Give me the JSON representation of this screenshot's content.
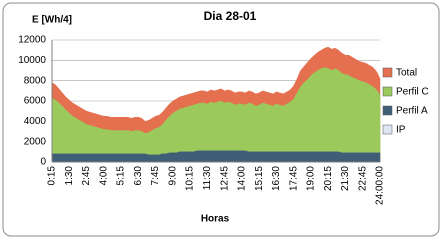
{
  "chart_data": {
    "type": "area",
    "title": "Dia 28-01",
    "y_label": "E [Wh/4]",
    "x_label": "Horas",
    "categories": [
      "0:15",
      null,
      null,
      null,
      null,
      "1:30",
      null,
      null,
      null,
      null,
      "2:45",
      null,
      null,
      null,
      null,
      "4:00",
      null,
      null,
      null,
      null,
      "5:15",
      null,
      null,
      null,
      null,
      "6:30",
      null,
      null,
      null,
      null,
      "7:45",
      null,
      null,
      null,
      null,
      "9:00",
      null,
      null,
      null,
      null,
      "10:15",
      null,
      null,
      null,
      null,
      "11:30",
      null,
      null,
      null,
      null,
      "12:45",
      null,
      null,
      null,
      null,
      "14:00",
      null,
      null,
      null,
      null,
      "15:15",
      null,
      null,
      null,
      null,
      "16:30",
      null,
      null,
      null,
      null,
      "17:45",
      null,
      null,
      null,
      null,
      "19:00",
      null,
      null,
      null,
      null,
      "20:15",
      null,
      null,
      null,
      null,
      "21:30",
      null,
      null,
      null,
      null,
      "22:45",
      null,
      null,
      null,
      null,
      "24:00:00"
    ],
    "series": [
      {
        "name": "Total",
        "color": "#e5704f",
        "values": [
          7800,
          7600,
          7200,
          6800,
          6400,
          6100,
          5800,
          5600,
          5400,
          5200,
          5000,
          4900,
          4800,
          4700,
          4600,
          4500,
          4500,
          4400,
          4400,
          4400,
          4400,
          4400,
          4400,
          4300,
          4400,
          4400,
          4300,
          4000,
          4100,
          4300,
          4500,
          4600,
          4900,
          5300,
          5700,
          6000,
          6200,
          6400,
          6500,
          6600,
          6700,
          6800,
          6900,
          7000,
          7000,
          6900,
          7100,
          7000,
          7100,
          7200,
          7000,
          7100,
          7000,
          6800,
          6900,
          6900,
          6800,
          7000,
          6900,
          6700,
          6800,
          7000,
          6900,
          6800,
          6700,
          6900,
          6800,
          6700,
          6900,
          7100,
          7500,
          8200,
          9000,
          9400,
          9800,
          10200,
          10500,
          10800,
          11000,
          11200,
          11300,
          11100,
          11200,
          11000,
          10700,
          10500,
          10500,
          10300,
          10100,
          9900,
          9800,
          9700,
          9500,
          9300,
          8900,
          8200
        ]
      },
      {
        "name": "Perfil C",
        "color": "#9bc95b",
        "values": [
          6300,
          6100,
          5800,
          5500,
          5100,
          4800,
          4500,
          4300,
          4100,
          3900,
          3700,
          3600,
          3500,
          3400,
          3300,
          3200,
          3200,
          3100,
          3100,
          3100,
          3100,
          3100,
          3100,
          3000,
          3100,
          3100,
          3000,
          2800,
          2900,
          3100,
          3300,
          3400,
          3700,
          4100,
          4500,
          4800,
          5000,
          5200,
          5300,
          5400,
          5500,
          5600,
          5700,
          5800,
          5800,
          5700,
          5900,
          5800,
          5900,
          6000,
          5800,
          5900,
          5800,
          5600,
          5700,
          5700,
          5600,
          5800,
          5700,
          5500,
          5600,
          5800,
          5700,
          5600,
          5500,
          5700,
          5600,
          5500,
          5700,
          5900,
          6200,
          6800,
          7400,
          7800,
          8100,
          8500,
          8800,
          9000,
          9200,
          9300,
          9200,
          9000,
          9200,
          9000,
          8700,
          8600,
          8500,
          8300,
          8200,
          8000,
          7900,
          7800,
          7600,
          7400,
          7100,
          6600
        ]
      },
      {
        "name": "Perfil A",
        "color": "#3f5e78",
        "values": [
          800,
          800,
          800,
          800,
          800,
          800,
          800,
          800,
          800,
          800,
          800,
          800,
          800,
          800,
          800,
          800,
          800,
          800,
          800,
          800,
          800,
          800,
          800,
          800,
          800,
          800,
          800,
          800,
          700,
          700,
          700,
          700,
          800,
          800,
          900,
          900,
          900,
          1000,
          1000,
          1000,
          1000,
          1000,
          1100,
          1100,
          1100,
          1100,
          1100,
          1100,
          1100,
          1100,
          1100,
          1100,
          1100,
          1100,
          1100,
          1100,
          1100,
          1000,
          1000,
          1000,
          1000,
          1000,
          1000,
          1000,
          1000,
          1000,
          1000,
          1000,
          1000,
          1000,
          1000,
          1000,
          1000,
          1000,
          1000,
          1000,
          1000,
          1000,
          1000,
          1000,
          1000,
          1000,
          1000,
          1000,
          900,
          900,
          900,
          900,
          900,
          900,
          900,
          900,
          900,
          900,
          900,
          900
        ]
      },
      {
        "name": "IP",
        "color": "#dce6f2",
        "values": [
          0,
          0,
          0,
          0,
          0,
          0,
          0,
          0,
          0,
          0,
          0,
          0,
          0,
          0,
          0,
          0,
          0,
          0,
          0,
          0,
          0,
          0,
          0,
          0,
          0,
          0,
          0,
          0,
          0,
          0,
          0,
          0,
          0,
          0,
          0,
          0,
          0,
          0,
          0,
          0,
          0,
          0,
          0,
          0,
          0,
          0,
          0,
          0,
          0,
          0,
          0,
          0,
          0,
          0,
          0,
          0,
          0,
          0,
          0,
          0,
          0,
          0,
          0,
          0,
          0,
          0,
          0,
          0,
          0,
          0,
          0,
          0,
          0,
          0,
          0,
          0,
          0,
          0,
          0,
          0,
          0,
          0,
          0,
          0,
          0,
          0,
          0,
          0,
          0,
          0,
          0,
          0,
          0,
          0,
          0,
          0
        ]
      }
    ],
    "ylim": [
      0,
      12000
    ],
    "yticks": [
      0,
      2000,
      4000,
      6000,
      8000,
      10000,
      12000
    ],
    "grid": true,
    "legend": "right"
  }
}
